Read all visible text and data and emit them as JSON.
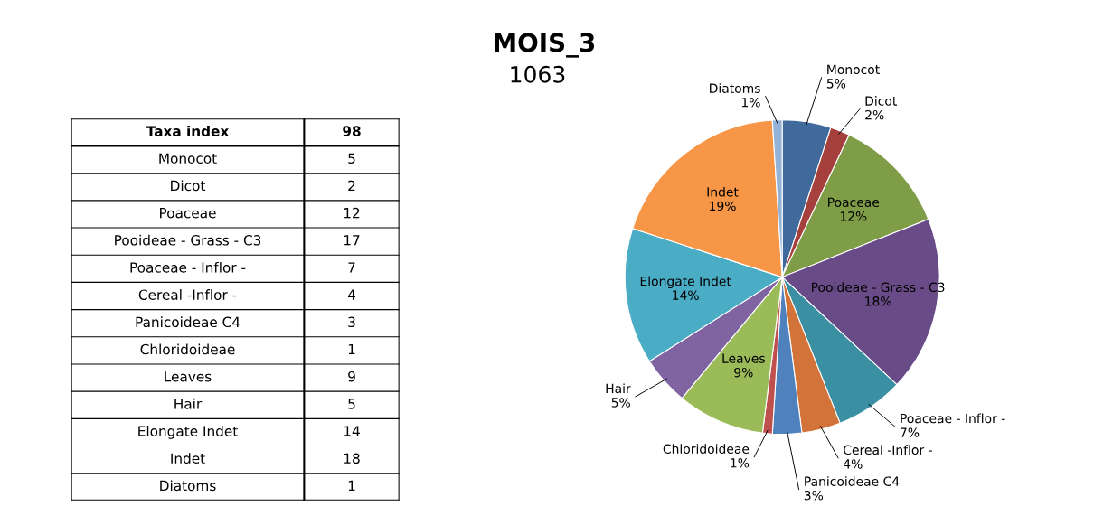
{
  "chart_data": [
    {
      "type": "other",
      "title": "Taxa index",
      "subtitle": "98",
      "categories": [
        "Monocot",
        "Dicot",
        "Poaceae",
        "Pooideae - Grass - C3",
        "Poaceae - Inflor -",
        "Cereal -Inflor -",
        "Panicoideae C4",
        "Chloridoideae",
        "Leaves",
        "Hair",
        "Elongate Indet",
        "Indet",
        "Diatoms"
      ],
      "values": [
        5,
        2,
        12,
        17,
        7,
        4,
        3,
        1,
        9,
        5,
        14,
        18,
        1
      ],
      "data_labels": true
    },
    {
      "type": "pie",
      "title": "MOIS_3",
      "subtitle": "1063",
      "categories": [
        "Monocot",
        "Dicot",
        "Poaceae",
        "Pooideae - Grass - C3",
        "Poaceae - Inflor -",
        "Cereal -Inflor -",
        "Panicoideae C4",
        "Chloridoideae",
        "Leaves",
        "Hair",
        "Elongate Indet",
        "Indet",
        "Diatoms"
      ],
      "values": [
        5,
        2,
        12,
        18,
        7,
        4,
        3,
        1,
        9,
        5,
        14,
        19,
        1
      ],
      "colors": [
        "#40699c",
        "#a5403c",
        "#7f9c47",
        "#694b87",
        "#3b8fa3",
        "#d2733a",
        "#4f81bd",
        "#c0504d",
        "#9bbb59",
        "#8064a2",
        "#4bacc6",
        "#f79646",
        "#95b3d7"
      ],
      "value_labels": [
        "5%",
        "2%",
        "12%",
        "18%",
        "7%",
        "4%",
        "3%",
        "1%",
        "9%",
        "5%",
        "14%",
        "19%",
        "1%"
      ],
      "legend": false
    }
  ]
}
